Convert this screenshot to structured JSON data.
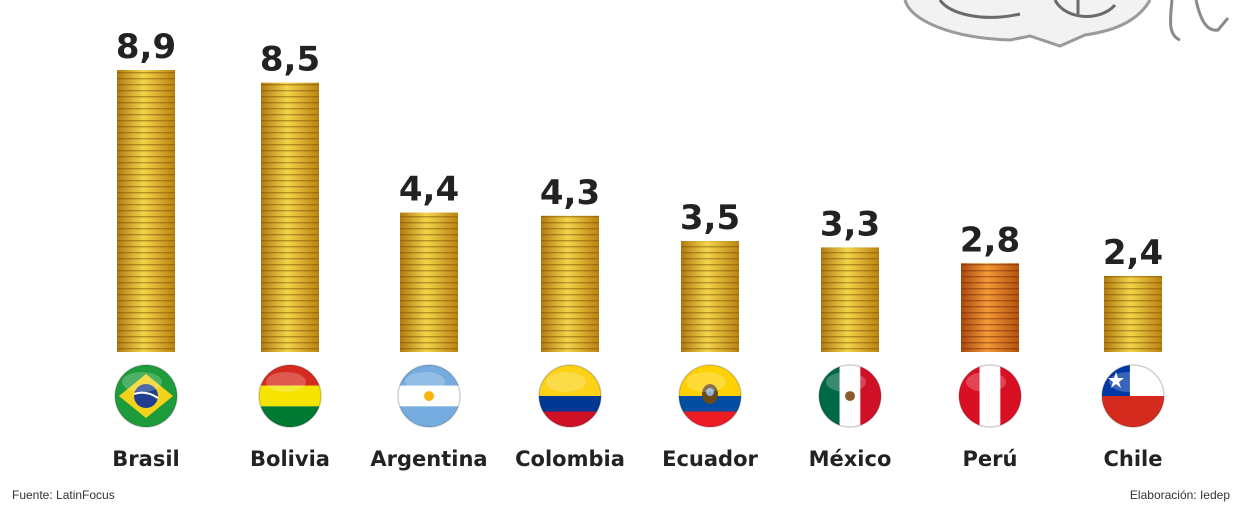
{
  "chart_data": {
    "type": "bar",
    "categories": [
      "Brasil",
      "Bolivia",
      "Argentina",
      "Colombia",
      "Ecuador",
      "México",
      "Perú",
      "Chile"
    ],
    "values": [
      8.9,
      8.5,
      4.4,
      4.3,
      3.5,
      3.3,
      2.8,
      2.4
    ],
    "value_labels": [
      "8,9",
      "8,5",
      "4,4",
      "4,3",
      "3,5",
      "3,3",
      "2,8",
      "2,4"
    ],
    "title": "",
    "xlabel": "",
    "ylabel": "",
    "ylim": [
      0,
      8.9
    ],
    "grid": false,
    "colors": {
      "bar_gold": "#d8a820",
      "bar_gold_light": "#f3d54a",
      "bar_gold_dark": "#b07a12",
      "bar_orange": "#d9701a",
      "bar_orange_light": "#f39a3a",
      "bar_orange_dark": "#a9480d"
    },
    "highlight_category": "Perú"
  },
  "flags": [
    {
      "country": "Brasil",
      "icon": "brazil-flag-icon"
    },
    {
      "country": "Bolivia",
      "icon": "bolivia-flag-icon"
    },
    {
      "country": "Argentina",
      "icon": "argentina-flag-icon"
    },
    {
      "country": "Colombia",
      "icon": "colombia-flag-icon"
    },
    {
      "country": "Ecuador",
      "icon": "ecuador-flag-icon"
    },
    {
      "country": "México",
      "icon": "mexico-flag-icon"
    },
    {
      "country": "Perú",
      "icon": "peru-flag-icon"
    },
    {
      "country": "Chile",
      "icon": "chile-flag-icon"
    }
  ],
  "footer": {
    "source": "Fuente: LatinFocus",
    "credit": "Elaboración: Iedep"
  },
  "decoration": {
    "icon": "cartoon-illustration-icon"
  }
}
